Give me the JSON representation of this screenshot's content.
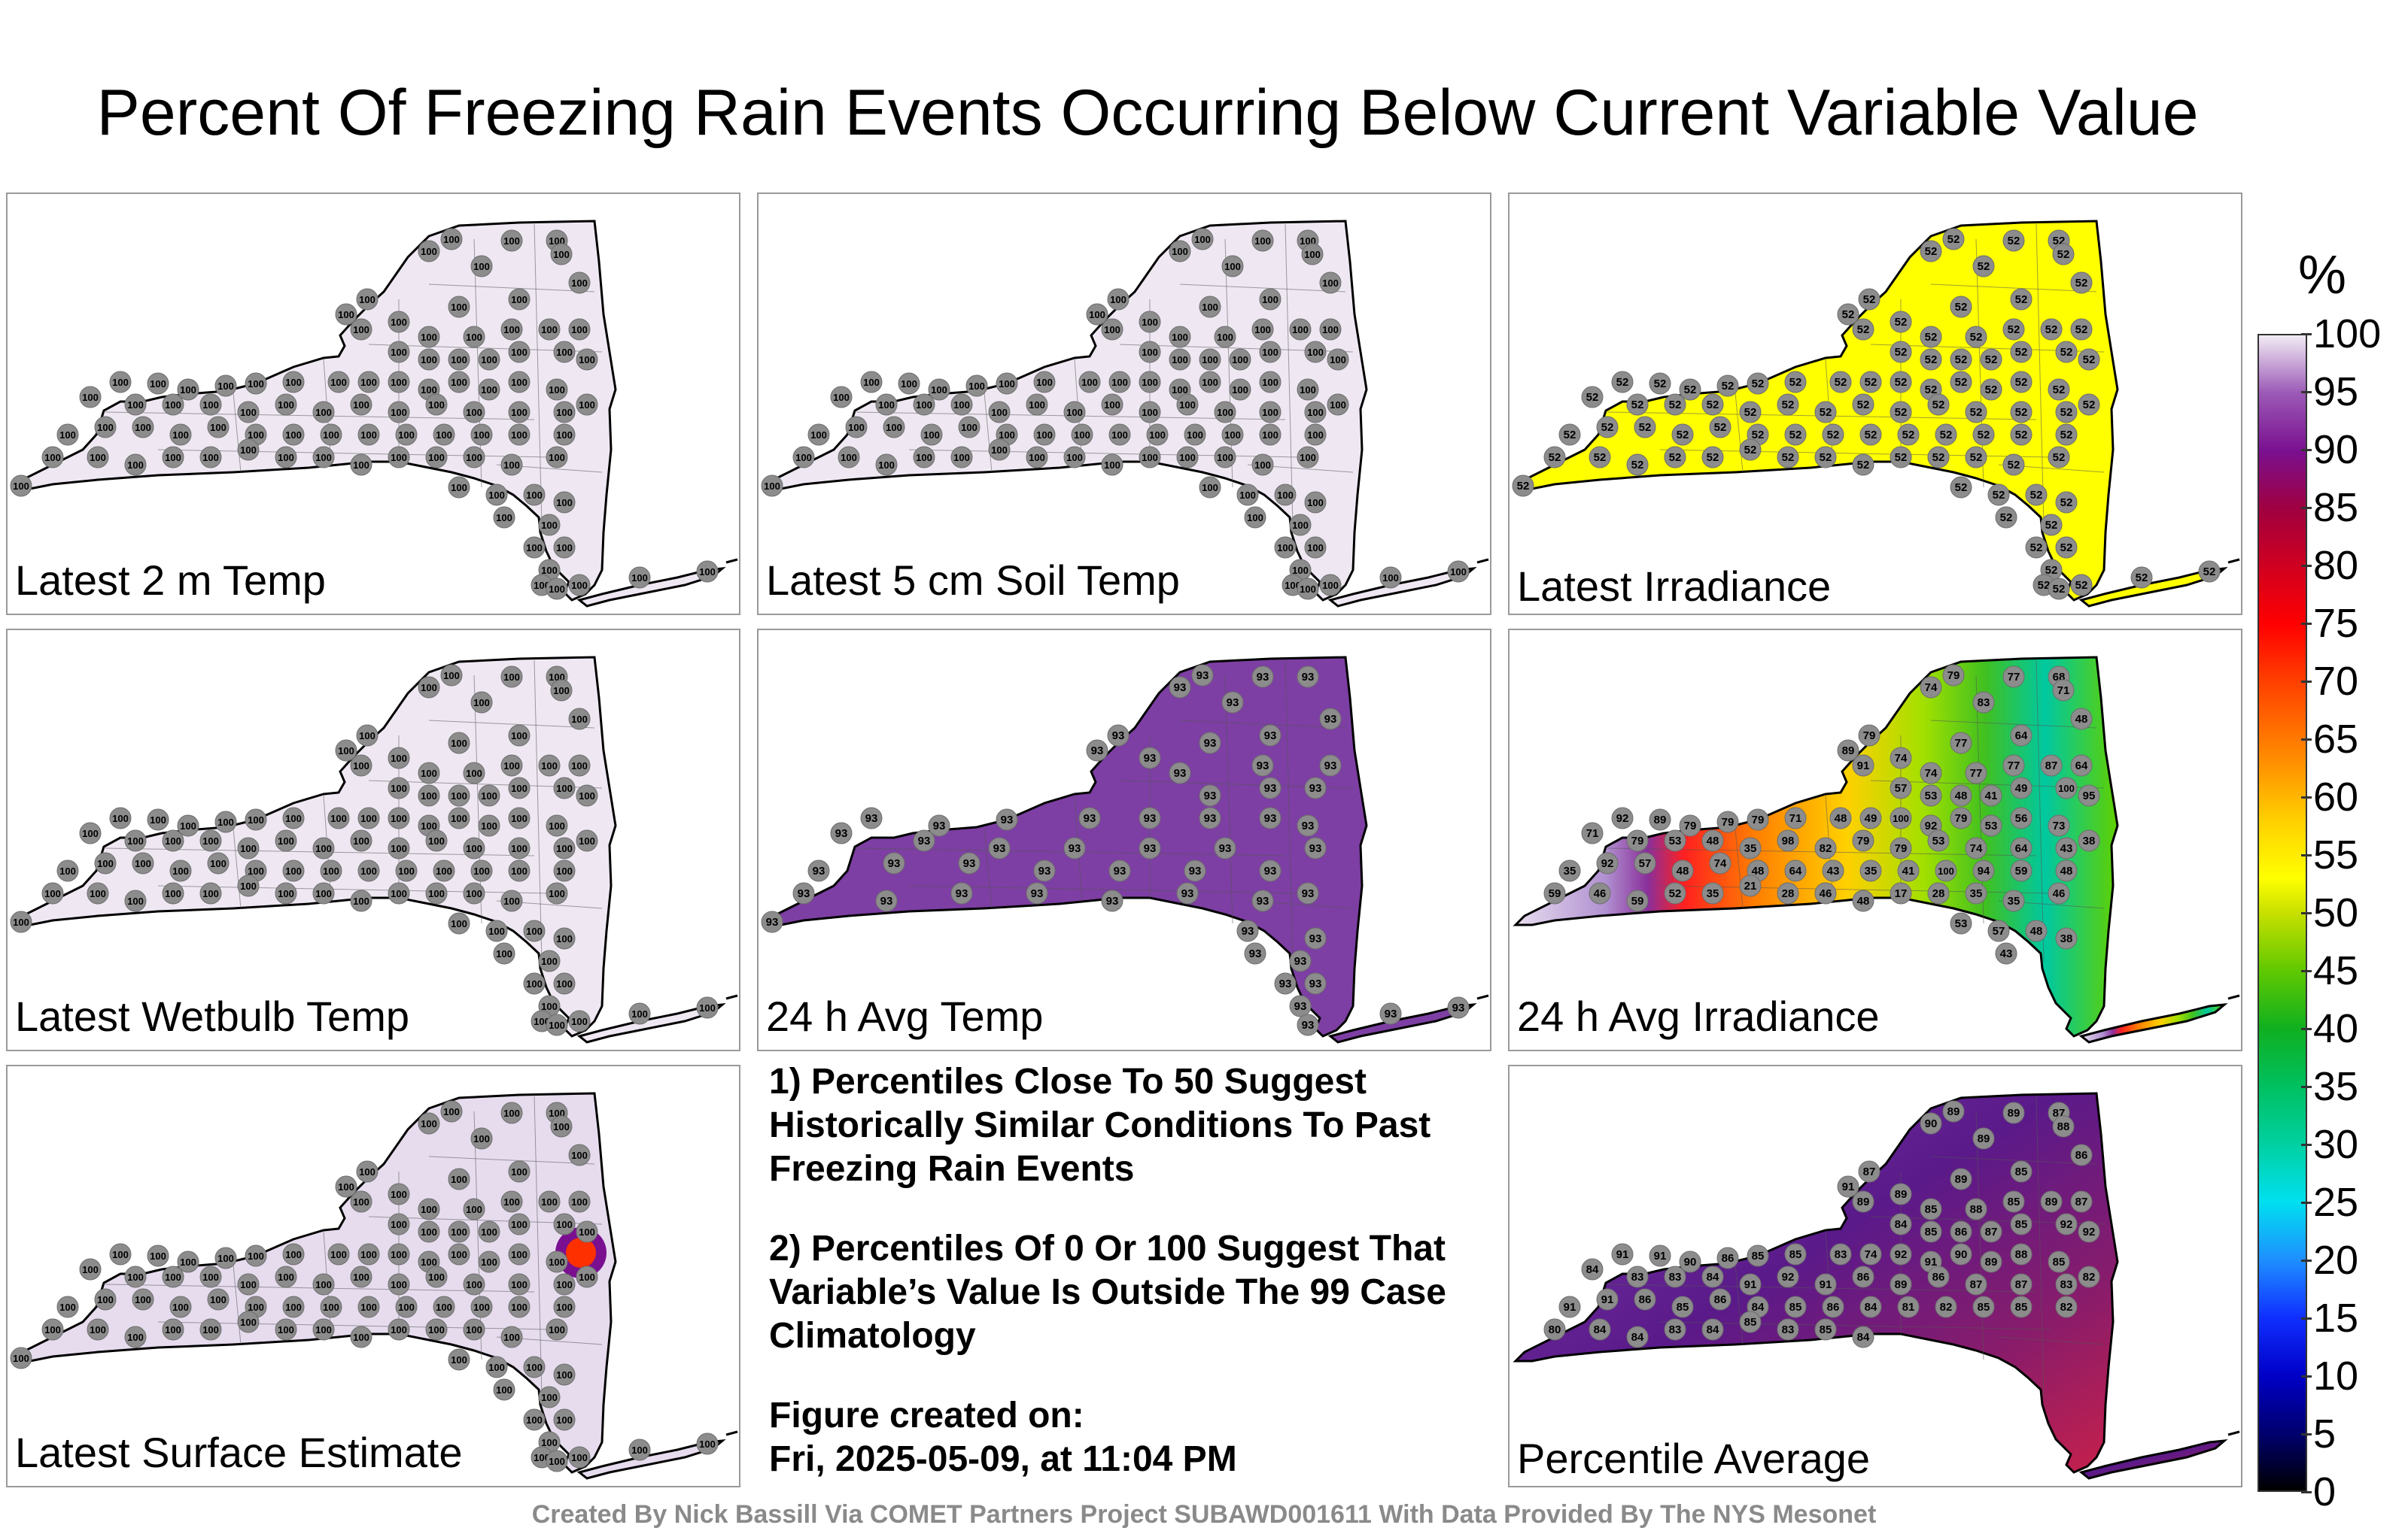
{
  "title": "Percent Of Freezing Rain Events Occurring Below Current Variable Value",
  "panels": [
    {
      "label": "Latest 2 m Temp",
      "fill": "#efe8f3",
      "value": "100"
    },
    {
      "label": "Latest 5 cm Soil Temp",
      "fill": "#efe8f3",
      "value": "100"
    },
    {
      "label": "Latest Irradiance",
      "fill": "#ffff00",
      "value": "52"
    },
    {
      "label": "Latest Wetbulb Temp",
      "fill": "#efe8f3",
      "value": "100"
    },
    {
      "label": "24 h Avg Temp",
      "fill": "#7d3fa3",
      "value": "93"
    },
    {
      "label": "24 h Avg Irradiance",
      "fill": "#f2e800",
      "value": ""
    },
    {
      "label": "Latest Surface Estimate",
      "fill": "#e6dcee",
      "value": "100"
    },
    {
      "label": "Percentile Average",
      "fill": "#6a1a8f",
      "value": ""
    }
  ],
  "notes": {
    "note1": "1) Percentiles Close To 50 Suggest Historically Similar Conditions To Past Freezing Rain Events",
    "note2": "2) Percentiles Of 0 Or 100 Suggest That Variable’s Value Is Outside The 99 Case Climatology",
    "created_label": "Figure created on:",
    "created_value": "Fri, 2025-05-09, at 11:04 PM"
  },
  "colorbar": {
    "unit": "%",
    "ticks": [
      "100",
      "95",
      "90",
      "85",
      "80",
      "75",
      "70",
      "65",
      "60",
      "55",
      "50",
      "45",
      "40",
      "35",
      "30",
      "25",
      "20",
      "15",
      "10",
      "5",
      "0"
    ]
  },
  "credit": "Created By Nick Bassill Via COMET Partners Project SUBAWD001611 With Data Provided By The NYS Mesonet",
  "irradiance_values": [
    "79",
    "77",
    "68",
    "71",
    "74",
    "83",
    "79",
    "89",
    "91",
    "74",
    "77",
    "64",
    "48",
    "64",
    "87",
    "77",
    "77",
    "74",
    "57",
    "53",
    "48",
    "41",
    "49",
    "100",
    "95",
    "92",
    "89",
    "79",
    "79",
    "79",
    "71",
    "48",
    "49",
    "100",
    "92",
    "79",
    "53",
    "56",
    "73",
    "71",
    "79",
    "53",
    "48",
    "35",
    "98",
    "82",
    "79",
    "79",
    "53",
    "74",
    "64",
    "43",
    "38",
    "35",
    "92",
    "57",
    "48",
    "74",
    "48",
    "64",
    "43",
    "35",
    "41",
    "100",
    "94",
    "59",
    "48",
    "59",
    "46",
    "59",
    "52",
    "35",
    "21",
    "28",
    "46",
    "48",
    "17",
    "28",
    "35",
    "35",
    "46",
    "53",
    "57",
    "48",
    "38",
    "43"
  ],
  "average_values": [
    "89",
    "89",
    "87",
    "88",
    "90",
    "89",
    "87",
    "91",
    "89",
    "89",
    "89",
    "85",
    "86",
    "87",
    "89",
    "85",
    "88",
    "85",
    "84",
    "85",
    "86",
    "87",
    "85",
    "92",
    "92",
    "91",
    "91",
    "90",
    "86",
    "85",
    "85",
    "83",
    "74",
    "92",
    "91",
    "90",
    "89",
    "88",
    "85",
    "84",
    "83",
    "83",
    "84",
    "91",
    "92",
    "91",
    "86",
    "89",
    "86",
    "87",
    "87",
    "83",
    "82",
    "91",
    "91",
    "86",
    "85",
    "86",
    "84",
    "85",
    "86",
    "84",
    "81",
    "82",
    "85",
    "85",
    "82",
    "80",
    "84",
    "84",
    "83",
    "84",
    "85",
    "83",
    "85",
    "84"
  ]
}
